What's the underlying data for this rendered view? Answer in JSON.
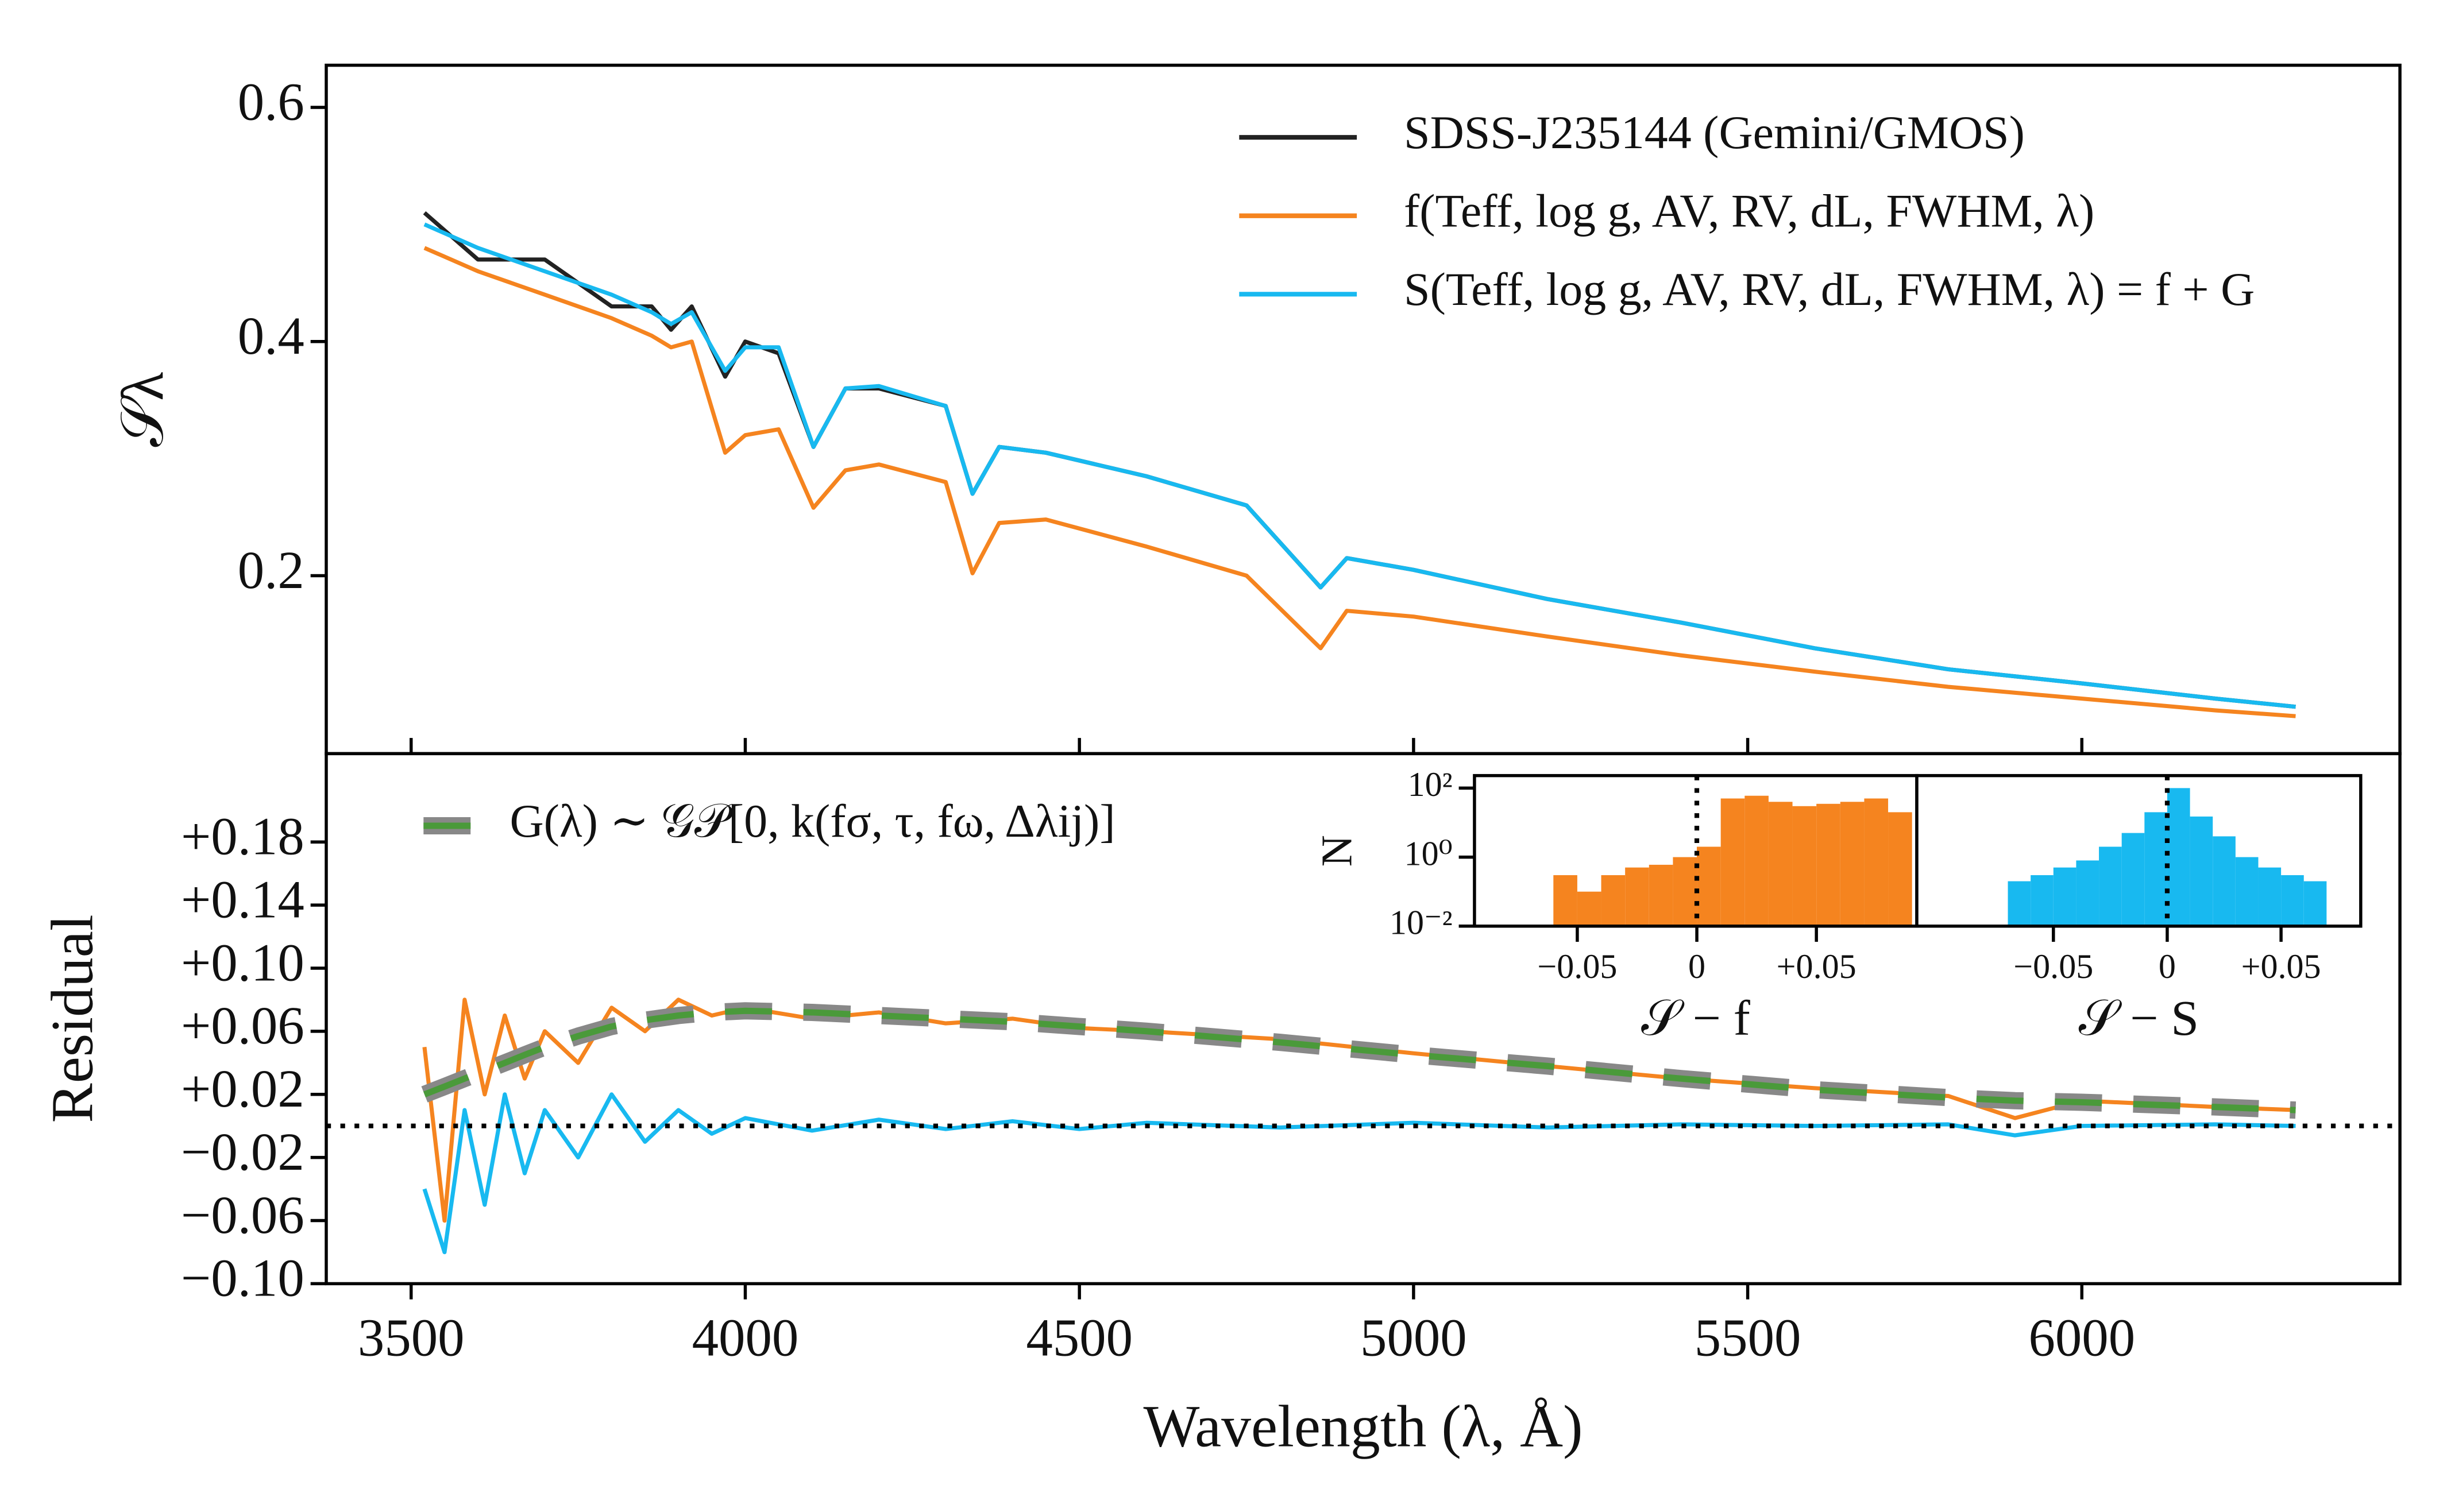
{
  "chart_data": [
    {
      "type": "line",
      "ylabel": "𝒮λ",
      "x": [
        3520,
        3600,
        3700,
        3800,
        3860,
        3889,
        3920,
        3970,
        4000,
        4050,
        4102,
        4150,
        4200,
        4300,
        4340,
        4380,
        4450,
        4600,
        4750,
        4861,
        4900,
        5000,
        5200,
        5400,
        5600,
        5800,
        6000,
        6200,
        6320
      ],
      "series": [
        {
          "name": "SDSS-J235144 (Gemini/GMOS)",
          "color": "#222222",
          "values": [
            0.51,
            0.47,
            0.47,
            0.43,
            0.43,
            0.41,
            0.43,
            0.37,
            0.4,
            0.39,
            0.31,
            0.36,
            0.36,
            0.345,
            0.27,
            0.31,
            0.305,
            0.285,
            0.26,
            0.19,
            0.215,
            0.205,
            0.18,
            0.16,
            0.138,
            0.12,
            0.108,
            0.095,
            0.088
          ]
        },
        {
          "name": "f(Teff, log g, AV, RV, dL, FWHM, λ)",
          "color": "#f5841f",
          "values": [
            0.48,
            0.46,
            0.44,
            0.42,
            0.405,
            0.395,
            0.4,
            0.305,
            0.32,
            0.325,
            0.258,
            0.29,
            0.295,
            0.28,
            0.202,
            0.245,
            0.248,
            0.225,
            0.2,
            0.138,
            0.17,
            0.165,
            0.148,
            0.132,
            0.118,
            0.105,
            0.095,
            0.085,
            0.08
          ]
        },
        {
          "name": "S(Teff, log g, AV, RV, dL, FWHM, λ) = f + G",
          "color": "#18b9f0",
          "values": [
            0.5,
            0.48,
            0.46,
            0.44,
            0.425,
            0.415,
            0.425,
            0.375,
            0.395,
            0.395,
            0.31,
            0.36,
            0.362,
            0.345,
            0.27,
            0.31,
            0.305,
            0.285,
            0.26,
            0.19,
            0.215,
            0.205,
            0.18,
            0.16,
            0.138,
            0.12,
            0.108,
            0.095,
            0.088
          ]
        }
      ],
      "xlim": [
        3373,
        6476
      ],
      "xticks": [
        3500,
        4000,
        4500,
        5000,
        5500,
        6000
      ],
      "ylim": [
        0.048,
        0.636
      ],
      "yticks": [
        0.2,
        0.4,
        0.6
      ],
      "legend": "upper right"
    },
    {
      "type": "line",
      "xlabel": "Wavelength (λ, Å)",
      "ylabel": "Residual",
      "x": [
        3520,
        3550,
        3580,
        3610,
        3640,
        3670,
        3700,
        3750,
        3800,
        3850,
        3900,
        3950,
        4000,
        4100,
        4200,
        4300,
        4400,
        4500,
        4600,
        4800,
        5000,
        5200,
        5400,
        5600,
        5800,
        5900,
        6000,
        6200,
        6320
      ],
      "series": [
        {
          "color": "#f5841f",
          "values": [
            0.05,
            -0.06,
            0.08,
            0.02,
            0.07,
            0.03,
            0.06,
            0.04,
            0.075,
            0.06,
            0.08,
            0.07,
            0.075,
            0.068,
            0.072,
            0.065,
            0.068,
            0.062,
            0.06,
            0.055,
            0.046,
            0.038,
            0.03,
            0.024,
            0.019,
            0.005,
            0.016,
            0.012,
            0.01
          ]
        },
        {
          "color": "#18b9f0",
          "values": [
            -0.04,
            -0.08,
            0.01,
            -0.05,
            0.02,
            -0.03,
            0.01,
            -0.02,
            0.02,
            -0.01,
            0.01,
            -0.005,
            0.005,
            -0.003,
            0.004,
            -0.002,
            0.003,
            -0.002,
            0.002,
            -0.001,
            0.002,
            -0.001,
            0.001,
            0,
            0.001,
            -0.006,
            0,
            0.001,
            0
          ]
        },
        {
          "name": "G(λ) ∼ 𝒢𝒫[0, k(fσ, τ, fω, Δλij)]",
          "color": "#4a9a3a",
          "style": "dashed",
          "values": [
            0.02,
            0.025,
            0.03,
            0.035,
            0.04,
            0.045,
            0.05,
            0.057,
            0.063,
            0.067,
            0.07,
            0.072,
            0.073,
            0.072,
            0.07,
            0.068,
            0.066,
            0.063,
            0.06,
            0.053,
            0.045,
            0.038,
            0.03,
            0.023,
            0.018,
            0.016,
            0.015,
            0.012,
            0.01
          ]
        }
      ],
      "hline": 0,
      "xlim": [
        3373,
        6476
      ],
      "xticks": [
        3500,
        4000,
        4500,
        5000,
        5500,
        6000
      ],
      "ylim": [
        -0.1,
        0.236
      ],
      "yticks": [
        {
          "value": 0.18,
          "label": "+0.18"
        },
        {
          "value": 0.14,
          "label": "+0.14"
        },
        {
          "value": 0.1,
          "label": "+0.10"
        },
        {
          "value": 0.06,
          "label": "+0.06"
        },
        {
          "value": 0.02,
          "label": "+0.02"
        },
        {
          "value": -0.02,
          "label": "−0.02"
        },
        {
          "value": -0.06,
          "label": "−0.06"
        },
        {
          "value": -0.1,
          "label": "−0.10"
        }
      ],
      "legend": "upper left"
    },
    {
      "type": "histogram",
      "xlabel": "𝒮 − f",
      "ylabel": "N",
      "color": "#f5841f",
      "log_y": true,
      "bins": [
        -0.06,
        -0.05,
        -0.04,
        -0.03,
        -0.02,
        -0.01,
        0,
        0.01,
        0.02,
        0.03,
        0.04,
        0.05,
        0.06,
        0.07,
        0.08,
        0.09
      ],
      "counts": [
        0.3,
        0.1,
        0.3,
        0.5,
        0.6,
        1,
        2,
        50,
        60,
        40,
        30,
        35,
        40,
        50,
        20
      ],
      "vline": 0,
      "xlim": [
        -0.093,
        0.092
      ],
      "xticks": [
        {
          "value": -0.05,
          "label": "−0.05"
        },
        0,
        {
          "value": 0.05,
          "label": "+0.05"
        }
      ],
      "ylim": [
        0.01,
        230
      ],
      "yticks": [
        {
          "value": 0.01,
          "label": "10⁻²"
        },
        {
          "value": 1,
          "label": "10⁰"
        },
        {
          "value": 100,
          "label": "10²"
        }
      ]
    },
    {
      "type": "histogram",
      "xlabel": "𝒮 − S",
      "color": "#18b9f0",
      "log_y": true,
      "bins": [
        -0.07,
        -0.06,
        -0.05,
        -0.04,
        -0.03,
        -0.02,
        -0.01,
        0,
        0.01,
        0.02,
        0.03,
        0.04,
        0.05,
        0.06,
        0.07
      ],
      "counts": [
        0.2,
        0.3,
        0.5,
        0.8,
        2,
        5,
        20,
        100,
        15,
        4,
        1,
        0.5,
        0.3,
        0.2
      ],
      "vline": 0,
      "xlim": [
        -0.11,
        0.085
      ],
      "xticks": [
        {
          "value": -0.05,
          "label": "−0.05"
        },
        0,
        {
          "value": 0.05,
          "label": "+0.05"
        }
      ],
      "ylim": [
        0.01,
        230
      ]
    }
  ]
}
